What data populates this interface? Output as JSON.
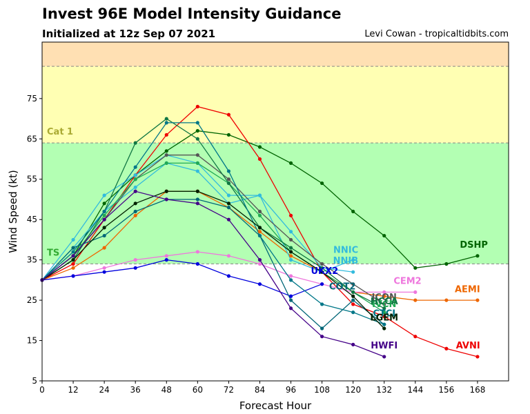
{
  "header": {
    "title": "Invest 96E Model Intensity Guidance",
    "subtitle": "Initialized at 12z Sep 07 2021",
    "credit": "Levi Cowan - tropicaltidbits.com"
  },
  "chart_data": {
    "type": "line",
    "xlabel": "Forecast Hour",
    "ylabel": "Wind Speed (kt)",
    "xlim": [
      0,
      180
    ],
    "ylim": [
      5,
      89
    ],
    "xticks": [
      0,
      12,
      24,
      36,
      48,
      60,
      72,
      84,
      96,
      108,
      120,
      132,
      144,
      156,
      168
    ],
    "yticks": [
      5,
      15,
      25,
      35,
      45,
      55,
      65,
      75
    ],
    "grid": false,
    "bands": [
      {
        "label": "TS",
        "from": 34,
        "to": 64,
        "color": "#b3ffb3",
        "label_color": "#33aa33"
      },
      {
        "label": "Cat 1",
        "from": 64,
        "to": 83,
        "color": "#ffffb3",
        "label_color": "#aaaa33"
      },
      {
        "label": "",
        "from": 83,
        "to": 89,
        "color": "#ffe0b3",
        "label_color": "#ffffff"
      }
    ],
    "series": [
      {
        "name": "DSHP",
        "color": "#006400",
        "x": [
          0,
          12,
          24,
          36,
          48,
          60,
          72,
          84,
          96,
          108,
          120,
          132,
          144,
          156,
          168
        ],
        "y": [
          30,
          36,
          49,
          56,
          62,
          67,
          66,
          63,
          59,
          54,
          47,
          41,
          33,
          34,
          36
        ],
        "label_x": 172,
        "label_y": 38,
        "anchor": "end"
      },
      {
        "name": "AVNI",
        "color": "#ee0000",
        "x": [
          0,
          12,
          24,
          36,
          48,
          60,
          72,
          84,
          96,
          108,
          120,
          132,
          144,
          156,
          168
        ],
        "y": [
          30,
          34,
          45,
          56,
          66,
          73,
          71,
          60,
          46,
          32,
          24,
          21,
          16,
          13,
          11
        ],
        "label_x": 169,
        "label_y": 13,
        "anchor": "end"
      },
      {
        "name": "AEMI",
        "color": "#ee6600",
        "x": [
          0,
          12,
          24,
          36,
          48,
          60,
          72,
          84,
          96,
          108,
          120,
          132,
          144,
          156,
          168
        ],
        "y": [
          30,
          33,
          38,
          46,
          52,
          52,
          48,
          42,
          36,
          32,
          27,
          26,
          25,
          25,
          25
        ],
        "label_x": 169,
        "label_y": 27,
        "anchor": "end"
      },
      {
        "name": "CEM2",
        "color": "#ee77dd",
        "x": [
          0,
          12,
          24,
          36,
          48,
          60,
          72,
          84,
          96,
          108,
          120,
          132,
          144
        ],
        "y": [
          30,
          31,
          33,
          35,
          36,
          37,
          36,
          34,
          31,
          29,
          27,
          27,
          27
        ],
        "label_x": 141,
        "label_y": 29,
        "anchor": "middle"
      },
      {
        "name": "NNIC",
        "color": "#33bbdd",
        "x": [
          0,
          12,
          24,
          36,
          48,
          60,
          72,
          84,
          96,
          108,
          120
        ],
        "y": [
          30,
          40,
          51,
          56,
          61,
          59,
          51,
          51,
          42,
          33,
          32
        ],
        "label_x": 122,
        "label_y": 36.7,
        "anchor": "end"
      },
      {
        "name": "NNIB",
        "color": "#33bbdd",
        "x": [
          0,
          12,
          24,
          36,
          48,
          60,
          72,
          84,
          96,
          108,
          120
        ],
        "y": [
          30,
          38,
          47,
          53,
          59,
          57,
          49,
          51,
          35,
          32,
          35
        ],
        "label_x": 122,
        "label_y": 34.1,
        "anchor": "end"
      },
      {
        "name": "UKX2",
        "color": "#0000dd",
        "x": [
          0,
          12,
          24,
          36,
          48,
          60,
          72,
          84,
          96,
          108
        ],
        "y": [
          30,
          31,
          32,
          33,
          35,
          34,
          31,
          29,
          26,
          29
        ],
        "label_x": 109,
        "label_y": 31.5,
        "anchor": "middle"
      },
      {
        "name": "COT2",
        "color": "#006677",
        "x": [
          0,
          12,
          24,
          36,
          48,
          60,
          72,
          84,
          96,
          108,
          120,
          132
        ],
        "y": [
          30,
          38,
          41,
          47,
          50,
          50,
          48,
          41,
          25,
          18,
          25,
          19
        ],
        "label_x": 121,
        "label_y": 27.7,
        "anchor": "end"
      },
      {
        "name": "ICON",
        "color": "#555555",
        "x": [
          0,
          12,
          24,
          36,
          48,
          60,
          72,
          84,
          96,
          108,
          120,
          132
        ],
        "y": [
          30,
          36,
          45,
          55,
          61,
          61,
          55,
          47,
          40,
          34,
          29,
          24
        ],
        "label_x": 132,
        "label_y": 25,
        "anchor": "middle"
      },
      {
        "name": "IVCN",
        "color": "#22aa55",
        "x": [
          0,
          12,
          24,
          36,
          48,
          60,
          72,
          84,
          96,
          108,
          120,
          132
        ],
        "y": [
          30,
          36,
          46,
          55,
          59,
          59,
          54,
          46,
          37,
          32,
          27,
          22
        ],
        "label_x": 132,
        "label_y": 23.3,
        "anchor": "middle"
      },
      {
        "name": "HCCA",
        "color": "#117744",
        "x": [
          0,
          12,
          24,
          36,
          48,
          60,
          72,
          84,
          96,
          108,
          120,
          132
        ],
        "y": [
          30,
          35,
          47,
          64,
          70,
          65,
          54,
          43,
          38,
          33,
          27,
          23
        ],
        "label_x": 132,
        "label_y": 24,
        "anchor": "middle"
      },
      {
        "name": "CTCI",
        "color": "#007788",
        "x": [
          0,
          12,
          24,
          36,
          48,
          60,
          72,
          84,
          96,
          108,
          120,
          132
        ],
        "y": [
          30,
          37,
          47,
          58,
          69,
          69,
          57,
          41,
          30,
          24,
          22,
          19
        ],
        "label_x": 132,
        "label_y": 21,
        "anchor": "middle"
      },
      {
        "name": "LGEM",
        "color": "#002200",
        "x": [
          0,
          12,
          24,
          36,
          48,
          60,
          72,
          84,
          96,
          108,
          120,
          132
        ],
        "y": [
          30,
          35,
          43,
          49,
          52,
          52,
          49,
          43,
          37,
          32,
          26,
          18
        ],
        "label_x": 132,
        "label_y": 20,
        "anchor": "middle"
      },
      {
        "name": "HWFI",
        "color": "#440088",
        "x": [
          0,
          12,
          24,
          36,
          48,
          60,
          72,
          84,
          96,
          108,
          120,
          132
        ],
        "y": [
          30,
          36,
          45,
          52,
          50,
          49,
          45,
          35,
          23,
          16,
          14,
          11
        ],
        "label_x": 132,
        "label_y": 13,
        "anchor": "middle"
      }
    ]
  }
}
